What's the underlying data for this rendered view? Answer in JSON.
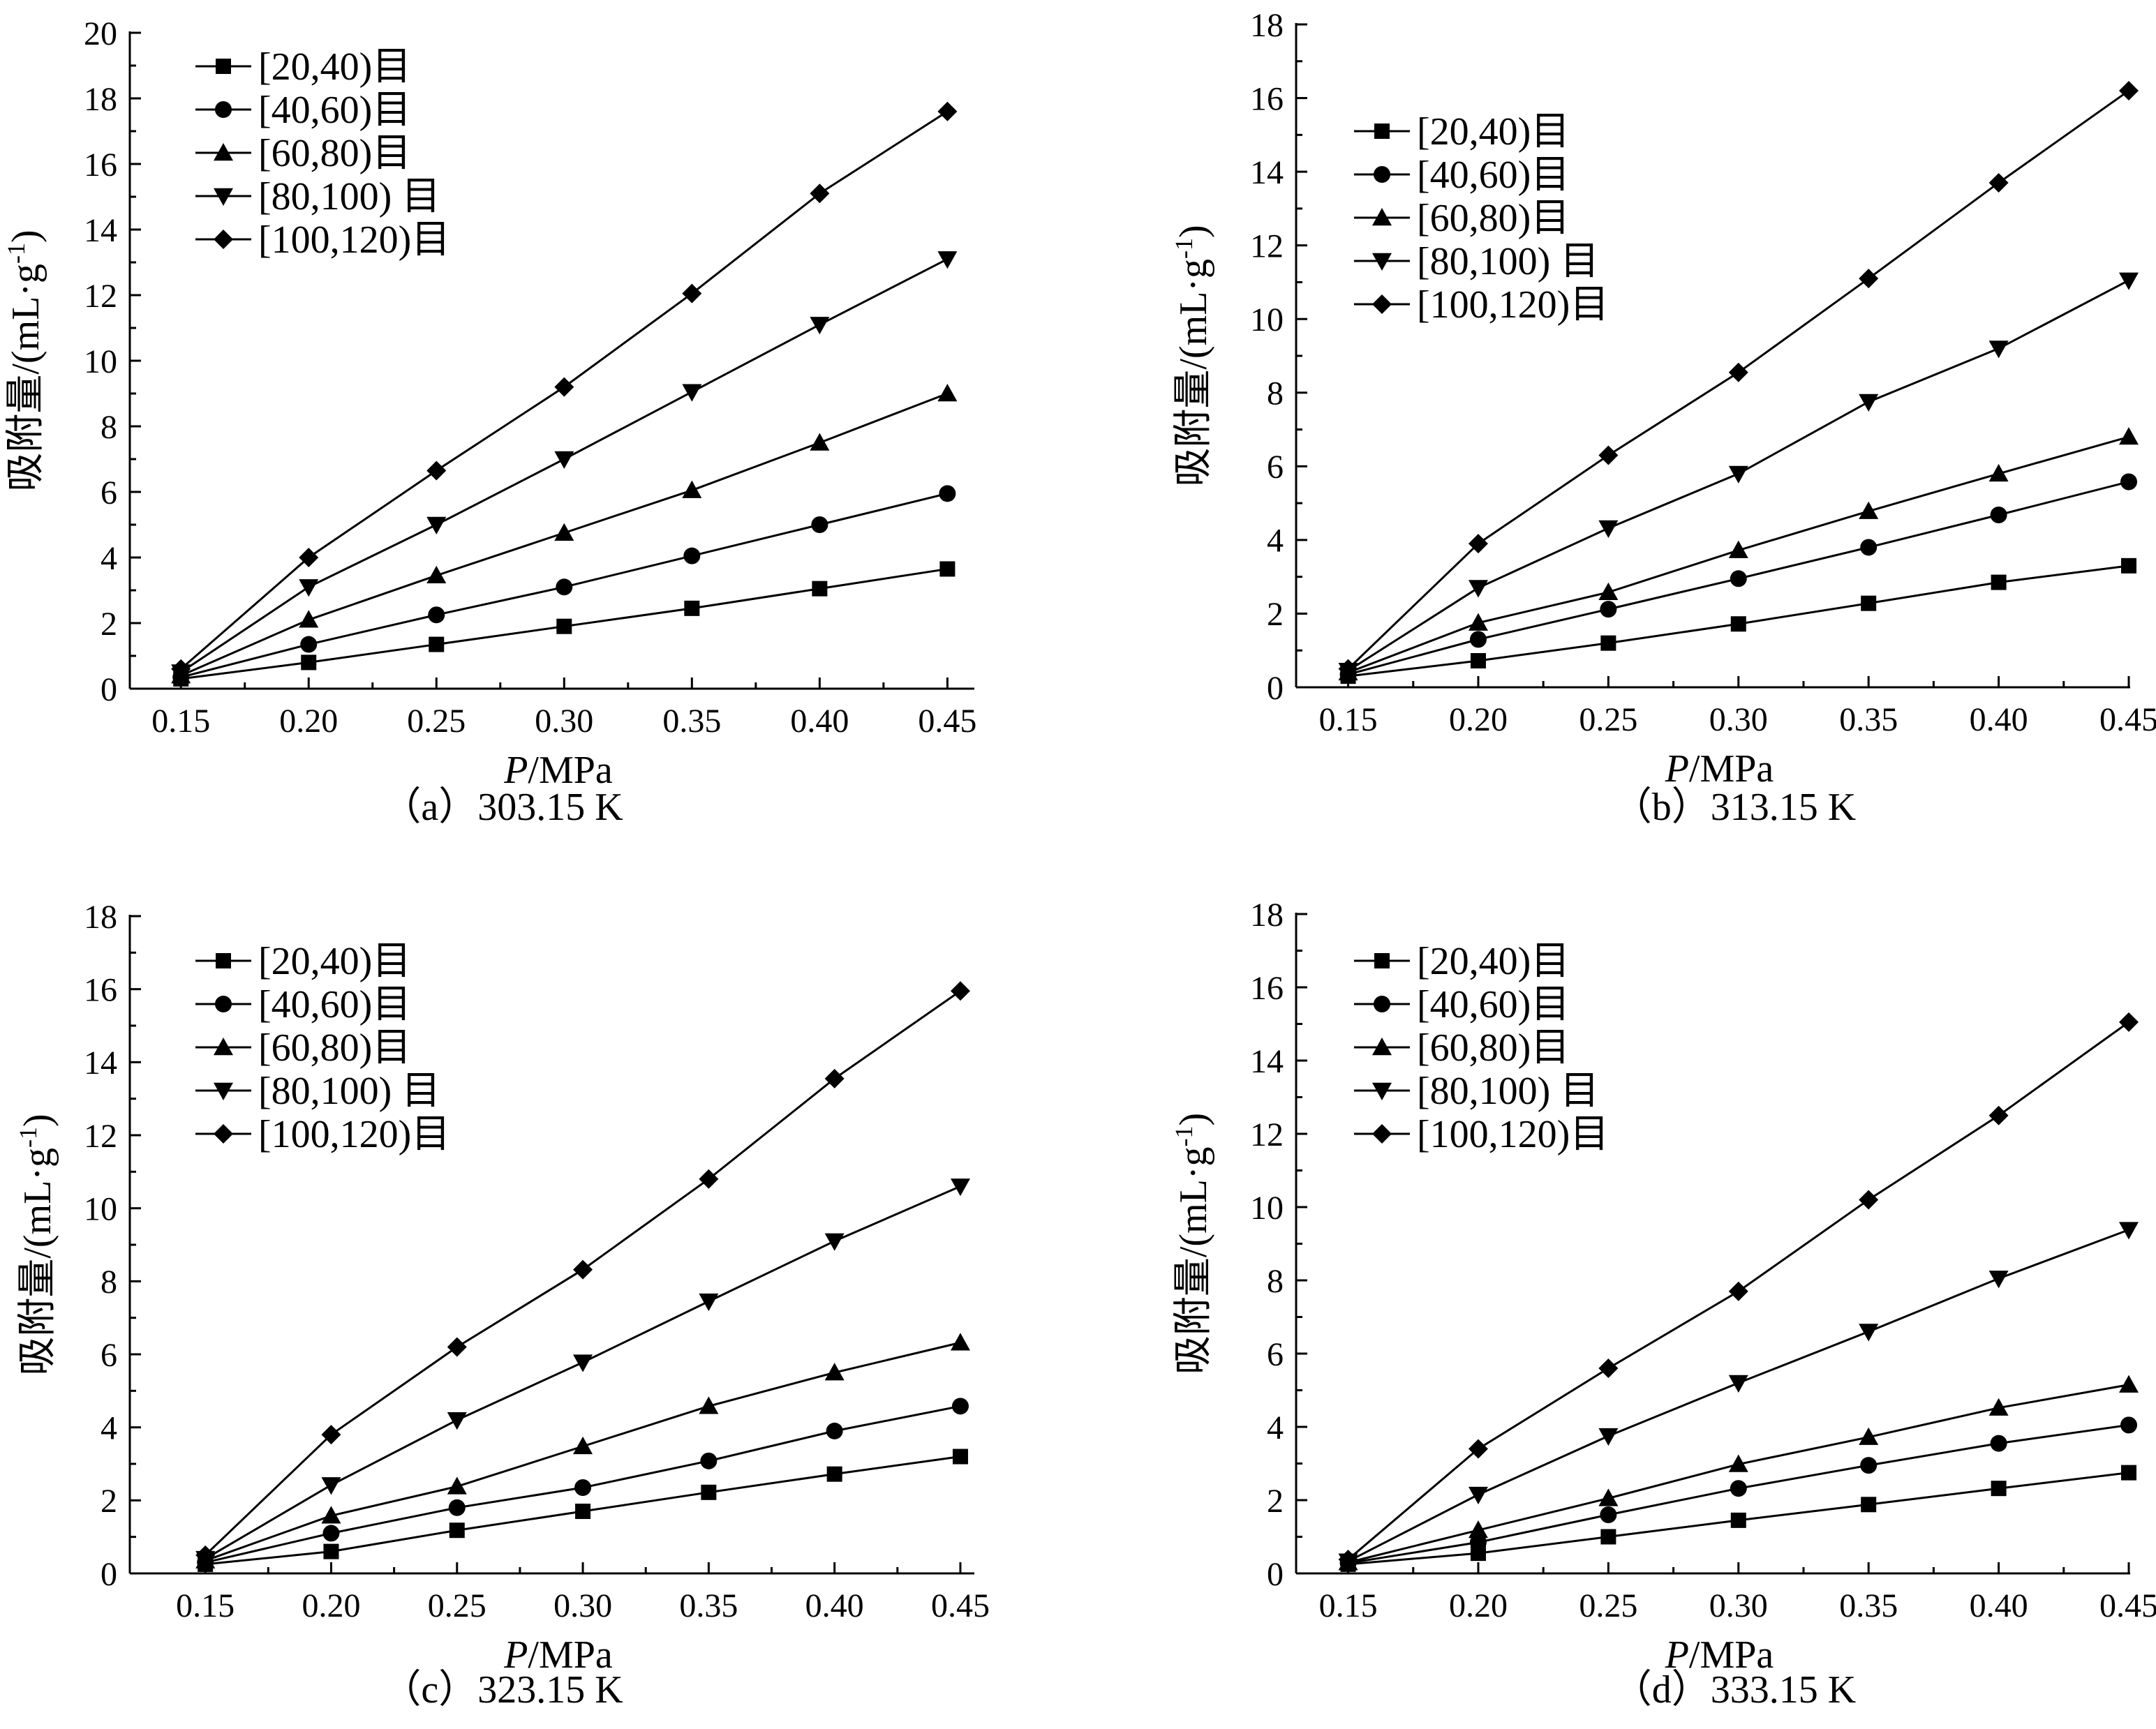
{
  "figure": {
    "panels": [
      {
        "caption": "（a）303.15 K",
        "ylim": [
          0,
          20
        ],
        "yticks": [
          0,
          2,
          4,
          6,
          8,
          10,
          12,
          14,
          16,
          18,
          20
        ]
      },
      {
        "caption": "（b）313.15 K",
        "ylim": [
          0,
          18
        ],
        "yticks": [
          0,
          2,
          4,
          6,
          8,
          10,
          12,
          14,
          16,
          18
        ]
      },
      {
        "caption": "（c）323.15 K",
        "ylim": [
          0,
          18
        ],
        "yticks": [
          0,
          2,
          4,
          6,
          8,
          10,
          12,
          14,
          16,
          18
        ]
      },
      {
        "caption": "（d）333.15 K",
        "ylim": [
          0,
          18
        ],
        "yticks": [
          0,
          2,
          4,
          6,
          8,
          10,
          12,
          14,
          16,
          18
        ]
      }
    ]
  },
  "chart_data": [
    {
      "type": "line",
      "caption": "（a）303.15 K",
      "xlabel_italic": "P",
      "xlabel_rest": "/MPa",
      "ylabel_main": "吸附量/(mL·g",
      "ylabel_sup": "-1",
      "ylabel_end": ")",
      "xlim": [
        0.13,
        0.46
      ],
      "ylim": [
        0,
        20
      ],
      "x": [
        0.15,
        0.2,
        0.25,
        0.3,
        0.35,
        0.4,
        0.45
      ],
      "xtick_labels": [
        "0.15",
        "0.20",
        "0.25",
        "0.30",
        "0.35",
        "0.40",
        "0.45"
      ],
      "legend_position": "top-left",
      "series": [
        {
          "name": "[20,40)目",
          "marker": "square",
          "values": [
            0.3,
            0.8,
            1.35,
            1.9,
            2.45,
            3.05,
            3.65
          ]
        },
        {
          "name": "[40,60)目",
          "marker": "circle",
          "values": [
            0.35,
            1.35,
            2.25,
            3.1,
            4.05,
            5.0,
            5.95
          ]
        },
        {
          "name": "[60,80)目",
          "marker": "triangle-up",
          "values": [
            0.4,
            2.1,
            3.45,
            4.75,
            6.05,
            7.5,
            9.0
          ]
        },
        {
          "name": "[80,100) 目",
          "marker": "triangle-down",
          "values": [
            0.5,
            3.1,
            5.0,
            7.0,
            9.05,
            11.1,
            13.1
          ]
        },
        {
          "name": "[100,120)目",
          "marker": "diamond",
          "values": [
            0.6,
            4.0,
            6.65,
            9.2,
            12.05,
            15.1,
            17.6
          ]
        }
      ]
    },
    {
      "type": "line",
      "caption": "（b）313.15 K",
      "xlabel_italic": "P",
      "xlabel_rest": "/MPa",
      "ylabel_main": "吸附量/(mL·g",
      "ylabel_sup": "-1",
      "ylabel_end": ")",
      "xlim": [
        0.13,
        0.45
      ],
      "ylim": [
        0,
        18
      ],
      "x": [
        0.15,
        0.2,
        0.25,
        0.3,
        0.35,
        0.4,
        0.45
      ],
      "xtick_labels": [
        "0.15",
        "0.20",
        "0.25",
        "0.30",
        "0.35",
        "0.40",
        "0.45"
      ],
      "legend_position": "top-left",
      "series": [
        {
          "name": "[20,40)目",
          "marker": "square",
          "values": [
            0.3,
            0.72,
            1.2,
            1.72,
            2.28,
            2.85,
            3.3
          ]
        },
        {
          "name": "[40,60)目",
          "marker": "circle",
          "values": [
            0.35,
            1.3,
            2.12,
            2.95,
            3.8,
            4.68,
            5.58
          ]
        },
        {
          "name": "[60,80)目",
          "marker": "triangle-up",
          "values": [
            0.4,
            1.75,
            2.58,
            3.72,
            4.78,
            5.8,
            6.8
          ]
        },
        {
          "name": "[80,100) 目",
          "marker": "triangle-down",
          "values": [
            0.45,
            2.7,
            4.32,
            5.8,
            7.75,
            9.2,
            11.05
          ]
        },
        {
          "name": "[100,120)目",
          "marker": "diamond",
          "values": [
            0.5,
            3.9,
            6.3,
            8.55,
            11.1,
            13.7,
            16.2
          ]
        }
      ]
    },
    {
      "type": "line",
      "caption": "（c）323.15 K",
      "xlabel_italic": "P",
      "xlabel_rest": "/MPa",
      "ylabel_main": "吸附量/(mL·g",
      "ylabel_sup": "-1",
      "ylabel_end": ")",
      "xlim": [
        0.12,
        0.455
      ],
      "ylim": [
        0,
        18
      ],
      "x": [
        0.15,
        0.2,
        0.25,
        0.3,
        0.35,
        0.4,
        0.45
      ],
      "xtick_labels": [
        "0.15",
        "0.20",
        "0.25",
        "0.30",
        "0.35",
        "0.40",
        "0.45"
      ],
      "legend_position": "top-left",
      "series": [
        {
          "name": "[20,40)目",
          "marker": "square",
          "values": [
            0.25,
            0.6,
            1.18,
            1.7,
            2.22,
            2.72,
            3.2
          ]
        },
        {
          "name": "[40,60)目",
          "marker": "circle",
          "values": [
            0.3,
            1.1,
            1.8,
            2.35,
            3.08,
            3.9,
            4.58
          ]
        },
        {
          "name": "[60,80)目",
          "marker": "triangle-up",
          "values": [
            0.35,
            1.58,
            2.38,
            3.48,
            4.58,
            5.5,
            6.32
          ]
        },
        {
          "name": "[80,100) 目",
          "marker": "triangle-down",
          "values": [
            0.4,
            2.42,
            4.2,
            5.78,
            7.45,
            9.1,
            10.6
          ]
        },
        {
          "name": "[100,120)目",
          "marker": "diamond",
          "values": [
            0.5,
            3.8,
            6.2,
            8.32,
            10.8,
            13.55,
            15.95
          ]
        }
      ]
    },
    {
      "type": "line",
      "caption": "（d）333.15 K",
      "xlabel_italic": "P",
      "xlabel_rest": "/MPa",
      "ylabel_main": "吸附量/(mL·g",
      "ylabel_sup": "-1",
      "ylabel_end": ")",
      "xlim": [
        0.13,
        0.45
      ],
      "ylim": [
        0,
        18
      ],
      "x": [
        0.15,
        0.2,
        0.25,
        0.3,
        0.35,
        0.4,
        0.45
      ],
      "xtick_labels": [
        "0.15",
        "0.20",
        "0.25",
        "0.30",
        "0.35",
        "0.40",
        "0.45"
      ],
      "legend_position": "top-left",
      "series": [
        {
          "name": "[20,40)目",
          "marker": "square",
          "values": [
            0.25,
            0.55,
            1.0,
            1.45,
            1.88,
            2.32,
            2.75
          ]
        },
        {
          "name": "[40,60)目",
          "marker": "circle",
          "values": [
            0.28,
            0.85,
            1.6,
            2.32,
            2.95,
            3.55,
            4.05
          ]
        },
        {
          "name": "[60,80)目",
          "marker": "triangle-up",
          "values": [
            0.3,
            1.18,
            2.05,
            2.98,
            3.72,
            4.52,
            5.15
          ]
        },
        {
          "name": "[80,100) 目",
          "marker": "triangle-down",
          "values": [
            0.33,
            2.15,
            3.75,
            5.2,
            6.6,
            8.05,
            9.38
          ]
        },
        {
          "name": "[100,120)目",
          "marker": "diamond",
          "values": [
            0.38,
            3.4,
            5.6,
            7.7,
            10.2,
            12.5,
            15.05
          ]
        }
      ]
    }
  ]
}
